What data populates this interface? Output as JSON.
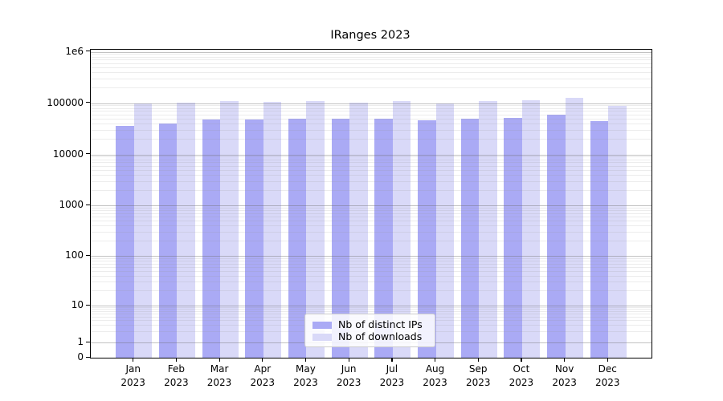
{
  "chart_data": {
    "type": "bar",
    "title": "IRanges 2023",
    "year_label": "2023",
    "categories": [
      "Jan",
      "Feb",
      "Mar",
      "Apr",
      "May",
      "Jun",
      "Jul",
      "Aug",
      "Sep",
      "Oct",
      "Nov",
      "Dec"
    ],
    "series": [
      {
        "name": "Nb of distinct IPs",
        "color": "#aaaaf5",
        "values": [
          36500,
          40500,
          48500,
          47000,
          49000,
          49000,
          49000,
          46000,
          50000,
          52000,
          59000,
          45000
        ]
      },
      {
        "name": "Nb of downloads",
        "color": "#d9d9f8",
        "values": [
          97000,
          101000,
          111000,
          106000,
          109000,
          101000,
          108000,
          97000,
          108000,
          112000,
          125000,
          89000
        ]
      }
    ],
    "yscale": "symlog",
    "ylim": [
      0,
      1000000
    ],
    "y_tick_labels": [
      "0",
      "1",
      "10",
      "100",
      "1000",
      "10000",
      "100000",
      "1e6"
    ],
    "grid": true,
    "legend_position": "lower center"
  },
  "colors": {
    "axis": "#000000",
    "major_grid": "#b0b0b0",
    "minor_grid": "#e8e8e8",
    "background": "#ffffff"
  }
}
